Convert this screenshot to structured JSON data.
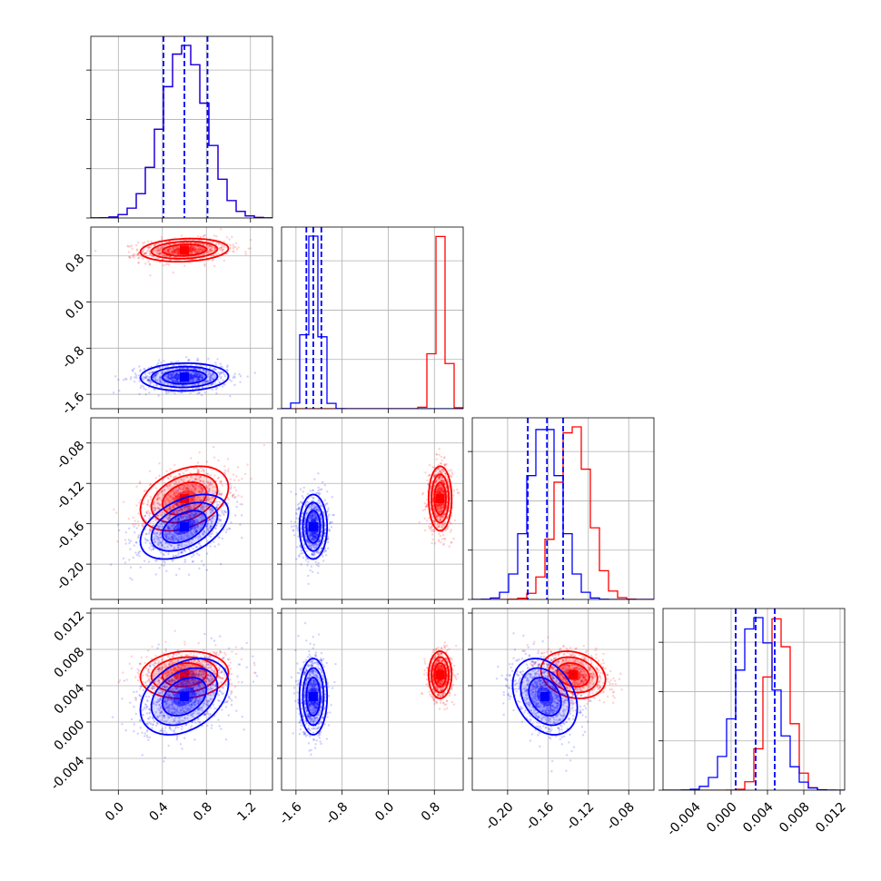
{
  "chart_data": {
    "type": "corner",
    "colors": {
      "red": "#ff0000",
      "blue": "#0000ff"
    },
    "parameters": [
      {
        "range": [
          -0.25,
          1.4
        ],
        "ticks": [
          "0.0",
          "0.4",
          "0.8",
          "1.2"
        ],
        "tick_values": [
          0.0,
          0.4,
          0.8,
          1.2
        ]
      },
      {
        "range": [
          -1.85,
          1.3
        ],
        "ticks": [
          "-1.6",
          "-0.8",
          "0.0",
          "0.8"
        ],
        "tick_values": [
          -1.6,
          -0.8,
          0.0,
          0.8
        ]
      },
      {
        "range": [
          -0.235,
          -0.055
        ],
        "ticks": [
          "-0.20",
          "-0.16",
          "-0.12",
          "-0.08"
        ],
        "tick_values": [
          -0.2,
          -0.16,
          -0.12,
          -0.08
        ]
      },
      {
        "range": [
          -0.0075,
          0.0125
        ],
        "ticks": [
          "-0.004",
          "0.000",
          "0.004",
          "0.008",
          "0.012"
        ],
        "tick_values": [
          -0.004,
          0.0,
          0.004,
          0.008,
          0.012
        ]
      }
    ],
    "series": [
      {
        "color": "red",
        "means": [
          0.6,
          0.9,
          -0.135,
          0.0052
        ],
        "sigmas": [
          0.2,
          0.1,
          0.016,
          0.0013
        ],
        "corr": {
          "0-1": 0.15,
          "0-2": 0.35,
          "0-3": 0.1,
          "1-2": 0.0,
          "1-3": 0.0,
          "2-3": -0.2
        }
      },
      {
        "color": "blue",
        "means": [
          0.6,
          -1.3,
          -0.163,
          0.0028
        ],
        "sigmas": [
          0.2,
          0.12,
          0.016,
          0.0021
        ],
        "corr": {
          "0-1": 0.05,
          "0-2": 0.45,
          "0-3": 0.35,
          "1-2": 0.0,
          "1-3": 0.0,
          "2-3": -0.3
        }
      }
    ],
    "quantile_lines": [
      [
        0.41,
        0.6,
        0.81
      ],
      [
        -1.42,
        -1.3,
        -1.16
      ],
      [
        -0.18,
        -0.161,
        -0.145
      ],
      [
        0.0005,
        0.0027,
        0.0048
      ]
    ],
    "grid": true,
    "legend": "none"
  }
}
